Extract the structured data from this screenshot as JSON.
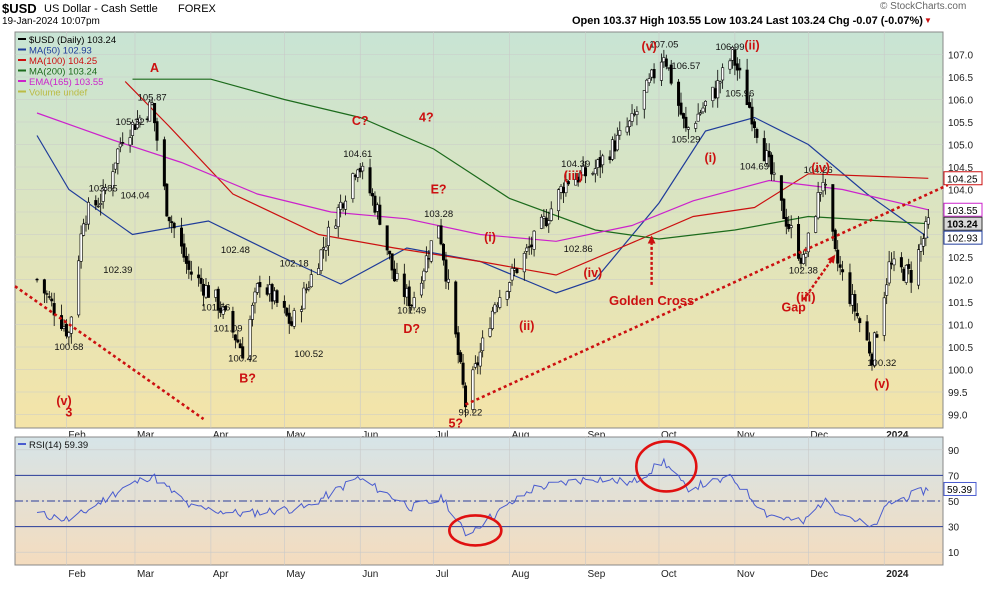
{
  "header": {
    "symbol": "$USD",
    "name": "US Dollar - Cash Settle",
    "exchange": "FOREX",
    "datetime": "19-Jan-2024 10:07pm",
    "quote": "Open 103.37   High 103.55   Low 103.24   Last 103.24   Chg -0.07 (-0.07%)",
    "chg_icon": "down-triangle-icon",
    "brand": "© StockCharts.com"
  },
  "legend": [
    {
      "label": "$USD (Daily) 103.24",
      "color": "#000000",
      "icon": "candlestick-icon"
    },
    {
      "label": "MA(50) 102.93",
      "color": "#1f3c9a",
      "icon": "line-swatch-icon"
    },
    {
      "label": "MA(100) 104.25",
      "color": "#cc1010",
      "icon": "line-swatch-icon"
    },
    {
      "label": "MA(200) 103.24",
      "color": "#1c6b1c",
      "icon": "line-swatch-icon"
    },
    {
      "label": "EMA(165) 103.55",
      "color": "#cc22cc",
      "icon": "line-swatch-icon"
    },
    {
      "label": "Volume undef",
      "color": "#bbbb44",
      "icon": "volume-icon"
    }
  ],
  "chart_data": [
    {
      "type": "candlestick",
      "ylim": [
        98.7,
        107.5
      ],
      "yticks": [
        99.0,
        99.5,
        100.0,
        100.5,
        101.0,
        101.5,
        102.0,
        102.5,
        103.0,
        103.5,
        104.0,
        104.5,
        105.0,
        105.5,
        106.0,
        106.5,
        107.0
      ],
      "xaxis_months": [
        "Feb",
        "Mar",
        "Apr",
        "May",
        "Jun",
        "Jul",
        "Aug",
        "Sep",
        "Oct",
        "Nov",
        "Dec",
        "2024"
      ],
      "price_path": [
        [
          "2023-01-20",
          102.0
        ],
        [
          "2023-02-02",
          100.8
        ],
        [
          "2023-02-08",
          103.4
        ],
        [
          "2023-02-16",
          103.85
        ],
        [
          "2023-02-24",
          105.2
        ],
        [
          "2023-03-08",
          105.87
        ],
        [
          "2023-03-14",
          103.6
        ],
        [
          "2023-03-23",
          102.2
        ],
        [
          "2023-04-03",
          101.56
        ],
        [
          "2023-04-14",
          100.42
        ],
        [
          "2023-04-21",
          102.0
        ],
        [
          "2023-05-04",
          101.0
        ],
        [
          "2023-05-31",
          104.61
        ],
        [
          "2023-06-09",
          103.4
        ],
        [
          "2023-06-15",
          102.0
        ],
        [
          "2023-06-22",
          101.49
        ],
        [
          "2023-07-03",
          103.28
        ],
        [
          "2023-07-14",
          99.22
        ],
        [
          "2023-07-26",
          101.5
        ],
        [
          "2023-08-11",
          102.86
        ],
        [
          "2023-08-24",
          104.2
        ],
        [
          "2023-09-04",
          104.39
        ],
        [
          "2023-09-20",
          105.5
        ],
        [
          "2023-10-03",
          107.05
        ],
        [
          "2023-10-12",
          105.29
        ],
        [
          "2023-10-24",
          106.2
        ],
        [
          "2023-10-31",
          106.99
        ],
        [
          "2023-11-14",
          104.69
        ],
        [
          "2023-11-20",
          103.6
        ],
        [
          "2023-11-29",
          102.38
        ],
        [
          "2023-12-07",
          104.26
        ],
        [
          "2023-12-12",
          102.5
        ],
        [
          "2023-12-27",
          100.32
        ],
        [
          "2024-01-03",
          102.3
        ],
        [
          "2024-01-12",
          102.1
        ],
        [
          "2024-01-19",
          103.24
        ]
      ],
      "moving_averages": [
        {
          "name": "MA(50) 102.93",
          "color": "#1f3c9a",
          "points": [
            [
              "2023-01-20",
              105.2
            ],
            [
              "2023-02-02",
              104.0
            ],
            [
              "2023-02-28",
              103.0
            ],
            [
              "2023-03-31",
              103.3
            ],
            [
              "2023-04-30",
              102.5
            ],
            [
              "2023-05-24",
              101.9
            ],
            [
              "2023-06-20",
              102.7
            ],
            [
              "2023-07-20",
              102.4
            ],
            [
              "2023-08-20",
              101.7
            ],
            [
              "2023-09-05",
              102.0
            ],
            [
              "2023-10-01",
              103.7
            ],
            [
              "2023-10-20",
              105.3
            ],
            [
              "2023-11-09",
              105.6
            ],
            [
              "2023-12-01",
              105.0
            ],
            [
              "2023-12-25",
              103.9
            ],
            [
              "2024-01-19",
              102.93
            ]
          ]
        },
        {
          "name": "MA(100) 104.25",
          "color": "#cc1010",
          "points": [
            [
              "2023-02-25",
              106.4
            ],
            [
              "2023-03-15",
              105.4
            ],
            [
              "2023-04-10",
              103.9
            ],
            [
              "2023-05-15",
              103.0
            ],
            [
              "2023-06-15",
              102.7
            ],
            [
              "2023-07-20",
              102.4
            ],
            [
              "2023-08-20",
              102.1
            ],
            [
              "2023-09-15",
              102.7
            ],
            [
              "2023-10-15",
              103.4
            ],
            [
              "2023-11-09",
              103.6
            ],
            [
              "2023-12-01",
              104.35
            ],
            [
              "2024-01-19",
              104.25
            ]
          ]
        },
        {
          "name": "MA(200) 103.24",
          "color": "#1c6b1c",
          "points": [
            [
              "2023-02-28",
              106.45
            ],
            [
              "2023-04-01",
              106.45
            ],
            [
              "2023-05-01",
              106.0
            ],
            [
              "2023-06-01",
              105.6
            ],
            [
              "2023-07-01",
              104.9
            ],
            [
              "2023-08-01",
              103.8
            ],
            [
              "2023-09-05",
              103.1
            ],
            [
              "2023-10-01",
              102.9
            ],
            [
              "2023-11-01",
              103.1
            ],
            [
              "2023-12-01",
              103.4
            ],
            [
              "2024-01-19",
              103.24
            ]
          ]
        },
        {
          "name": "EMA(165) 103.55",
          "color": "#cc22cc",
          "points": [
            [
              "2023-01-20",
              105.7
            ],
            [
              "2023-02-20",
              105.1
            ],
            [
              "2023-03-20",
              104.6
            ],
            [
              "2023-04-20",
              103.9
            ],
            [
              "2023-05-20",
              103.5
            ],
            [
              "2023-06-20",
              103.35
            ],
            [
              "2023-07-20",
              103.0
            ],
            [
              "2023-08-20",
              102.85
            ],
            [
              "2023-09-20",
              103.2
            ],
            [
              "2023-10-15",
              103.75
            ],
            [
              "2023-11-15",
              104.2
            ],
            [
              "2023-12-15",
              104.0
            ],
            [
              "2024-01-19",
              103.55
            ]
          ]
        }
      ],
      "trendlines": [
        {
          "from": [
            "2023-01-11",
            101.85
          ],
          "to": [
            "2023-03-29",
            98.9
          ],
          "color": "#cc1010",
          "style": "dotted"
        },
        {
          "from": [
            "2023-07-14",
            99.22
          ],
          "to": [
            "2024-01-27",
            104.1
          ],
          "color": "#cc1010",
          "style": "dotted"
        }
      ],
      "price_labels": [
        {
          "text": "100.68",
          "x": "2023-02-02",
          "y": 100.68,
          "pos": "below"
        },
        {
          "text": "103.85",
          "x": "2023-02-16",
          "y": 103.85,
          "pos": "above"
        },
        {
          "text": "102.39",
          "x": "2023-02-22",
          "y": 102.39,
          "pos": "below"
        },
        {
          "text": "104.04",
          "x": "2023-03-01",
          "y": 104.04,
          "pos": "below"
        },
        {
          "text": "105.32",
          "x": "2023-02-27",
          "y": 105.32,
          "pos": "above"
        },
        {
          "text": "105.87",
          "x": "2023-03-08",
          "y": 105.87,
          "pos": "above"
        },
        {
          "text": "101.56",
          "x": "2023-04-03",
          "y": 101.56,
          "pos": "below"
        },
        {
          "text": "102.48",
          "x": "2023-04-11",
          "y": 102.48,
          "pos": "above"
        },
        {
          "text": "101.09",
          "x": "2023-04-08",
          "y": 101.09,
          "pos": "below"
        },
        {
          "text": "100.42",
          "x": "2023-04-14",
          "y": 100.42,
          "pos": "below"
        },
        {
          "text": "102.18",
          "x": "2023-05-05",
          "y": 102.18,
          "pos": "above"
        },
        {
          "text": "100.52",
          "x": "2023-05-11",
          "y": 100.52,
          "pos": "below"
        },
        {
          "text": "104.61",
          "x": "2023-05-31",
          "y": 104.61,
          "pos": "above"
        },
        {
          "text": "101.49",
          "x": "2023-06-22",
          "y": 101.49,
          "pos": "below"
        },
        {
          "text": "103.28",
          "x": "2023-07-03",
          "y": 103.28,
          "pos": "above"
        },
        {
          "text": "99.22",
          "x": "2023-07-16",
          "y": 99.22,
          "pos": "below"
        },
        {
          "text": "102.86",
          "x": "2023-08-29",
          "y": 102.86,
          "pos": "below"
        },
        {
          "text": "104.39",
          "x": "2023-08-28",
          "y": 104.39,
          "pos": "above"
        },
        {
          "text": "105.29",
          "x": "2023-10-12",
          "y": 105.29,
          "pos": "below"
        },
        {
          "text": "106.57",
          "x": "2023-10-12",
          "y": 106.57,
          "pos": "above"
        },
        {
          "text": "107.05",
          "x": "2023-10-03",
          "y": 107.05,
          "pos": "above"
        },
        {
          "text": "106.99",
          "x": "2023-10-30",
          "y": 106.99,
          "pos": "above"
        },
        {
          "text": "105.96",
          "x": "2023-11-03",
          "y": 105.96,
          "pos": "above"
        },
        {
          "text": "104.69",
          "x": "2023-11-09",
          "y": 104.69,
          "pos": "below"
        },
        {
          "text": "104.26",
          "x": "2023-12-05",
          "y": 104.26,
          "pos": "above"
        },
        {
          "text": "102.38",
          "x": "2023-11-29",
          "y": 102.38,
          "pos": "below"
        },
        {
          "text": "100.32",
          "x": "2023-12-31",
          "y": 100.32,
          "pos": "below"
        }
      ],
      "wave_labels": [
        {
          "text": "A",
          "x": "2023-03-09",
          "y": 106.7
        },
        {
          "text": "B?",
          "x": "2023-04-16",
          "y": 99.8
        },
        {
          "text": "C?",
          "x": "2023-06-01",
          "y": 105.52
        },
        {
          "text": "4?",
          "x": "2023-06-28",
          "y": 105.6
        },
        {
          "text": "E?",
          "x": "2023-07-03",
          "y": 104.0
        },
        {
          "text": "D?",
          "x": "2023-06-22",
          "y": 100.9
        },
        {
          "text": "5?",
          "x": "2023-07-10",
          "y": 98.8
        },
        {
          "text": "(v)",
          "x": "2023-01-31",
          "y": 99.3
        },
        {
          "text": "3",
          "x": "2023-02-02",
          "y": 99.05
        },
        {
          "text": "(i)",
          "x": "2023-07-24",
          "y": 102.93
        },
        {
          "text": "(ii)",
          "x": "2023-08-08",
          "y": 100.97
        },
        {
          "text": "(iii)",
          "x": "2023-08-27",
          "y": 104.3
        },
        {
          "text": "(iv)",
          "x": "2023-09-04",
          "y": 102.15
        },
        {
          "text": "(v)",
          "x": "2023-09-27",
          "y": 107.18
        },
        {
          "text": "(i)",
          "x": "2023-10-22",
          "y": 104.7
        },
        {
          "text": "(ii)",
          "x": "2023-11-08",
          "y": 107.2
        },
        {
          "text": "(iii)",
          "x": "2023-11-30",
          "y": 101.6
        },
        {
          "text": "(iv)",
          "x": "2023-12-06",
          "y": 104.48
        },
        {
          "text": "(v)",
          "x": "2023-12-31",
          "y": 99.68
        },
        {
          "text": "Golden Cross",
          "x": "2023-09-28",
          "y": 101.52
        },
        {
          "text": "Gap",
          "x": "2023-11-25",
          "y": 101.38
        }
      ],
      "arrows": [
        {
          "from": [
            "2023-09-28",
            101.88
          ],
          "to": [
            "2023-09-28",
            102.98
          ]
        },
        {
          "from": [
            "2023-11-29",
            101.55
          ],
          "to": [
            "2023-12-12",
            102.55
          ]
        }
      ],
      "axis_tags": [
        {
          "text": "104.25",
          "y": 104.25,
          "fill": "#ffffff",
          "stroke": "#cc1010",
          "color": "#000000"
        },
        {
          "text": "103.55",
          "y": 103.55,
          "fill": "#ffffff",
          "stroke": "#cc22cc",
          "color": "#000000"
        },
        {
          "text": "103.24",
          "y": 103.24,
          "fill": "#d8d8d8",
          "stroke": "#333333",
          "color": "#000000"
        },
        {
          "text": "102.93",
          "y": 102.93,
          "fill": "#ffffff",
          "stroke": "#1f3c9a",
          "color": "#000000"
        }
      ],
      "last_value": 103.24
    },
    {
      "type": "line",
      "name": "RSI(14) 59.39",
      "ylim": [
        0,
        100
      ],
      "yticks": [
        10,
        30,
        50,
        70,
        90
      ],
      "reference_lines": [
        70,
        50,
        30
      ],
      "path": [
        [
          "2023-01-20",
          40
        ],
        [
          "2023-02-03",
          35
        ],
        [
          "2023-02-24",
          60
        ],
        [
          "2023-03-08",
          70
        ],
        [
          "2023-03-24",
          45
        ],
        [
          "2023-04-14",
          40
        ],
        [
          "2023-05-10",
          45
        ],
        [
          "2023-05-31",
          68
        ],
        [
          "2023-06-22",
          45
        ],
        [
          "2023-07-05",
          52
        ],
        [
          "2023-07-14",
          24
        ],
        [
          "2023-08-11",
          60
        ],
        [
          "2023-09-04",
          68
        ],
        [
          "2023-09-20",
          64
        ],
        [
          "2023-10-03",
          81
        ],
        [
          "2023-10-12",
          60
        ],
        [
          "2023-10-31",
          68
        ],
        [
          "2023-11-14",
          40
        ],
        [
          "2023-11-29",
          33
        ],
        [
          "2023-12-07",
          50
        ],
        [
          "2023-12-27",
          28
        ],
        [
          "2024-01-03",
          48
        ],
        [
          "2024-01-19",
          59.39
        ]
      ],
      "circles": [
        {
          "center": [
            "2023-07-18",
            27
          ],
          "rx": 26,
          "ry": 15
        },
        {
          "center": [
            "2023-10-04",
            77
          ],
          "rx": 30,
          "ry": 25
        }
      ],
      "last_value": 59.39,
      "last_label": "59.39"
    }
  ],
  "x_axis": {
    "months": [
      {
        "label": "Feb",
        "date": "2023-02-01"
      },
      {
        "label": "Mar",
        "date": "2023-03-01"
      },
      {
        "label": "Apr",
        "date": "2023-04-01"
      },
      {
        "label": "May",
        "date": "2023-05-01"
      },
      {
        "label": "Jun",
        "date": "2023-06-01"
      },
      {
        "label": "Jul",
        "date": "2023-07-01"
      },
      {
        "label": "Aug",
        "date": "2023-08-01"
      },
      {
        "label": "Sep",
        "date": "2023-09-01"
      },
      {
        "label": "Oct",
        "date": "2023-10-01"
      },
      {
        "label": "Nov",
        "date": "2023-11-01"
      },
      {
        "label": "Dec",
        "date": "2023-12-01"
      },
      {
        "label": "2024",
        "date": "2024-01-01"
      }
    ]
  },
  "colors": {
    "grid": "#c9c9c9",
    "candle_up": "#ffffff",
    "candle_down": "#000000",
    "wave_label": "#cc1010",
    "trend": "#cc1010",
    "rsi_line": "#4a5ccf",
    "rsi_ref": "#2a3d9a",
    "price_bg_top": "#c8e4d4",
    "price_bg_bottom": "#f4e4a8",
    "rsi_bg_top": "#d6e4e8",
    "rsi_bg_bottom": "#f4dcbe"
  }
}
